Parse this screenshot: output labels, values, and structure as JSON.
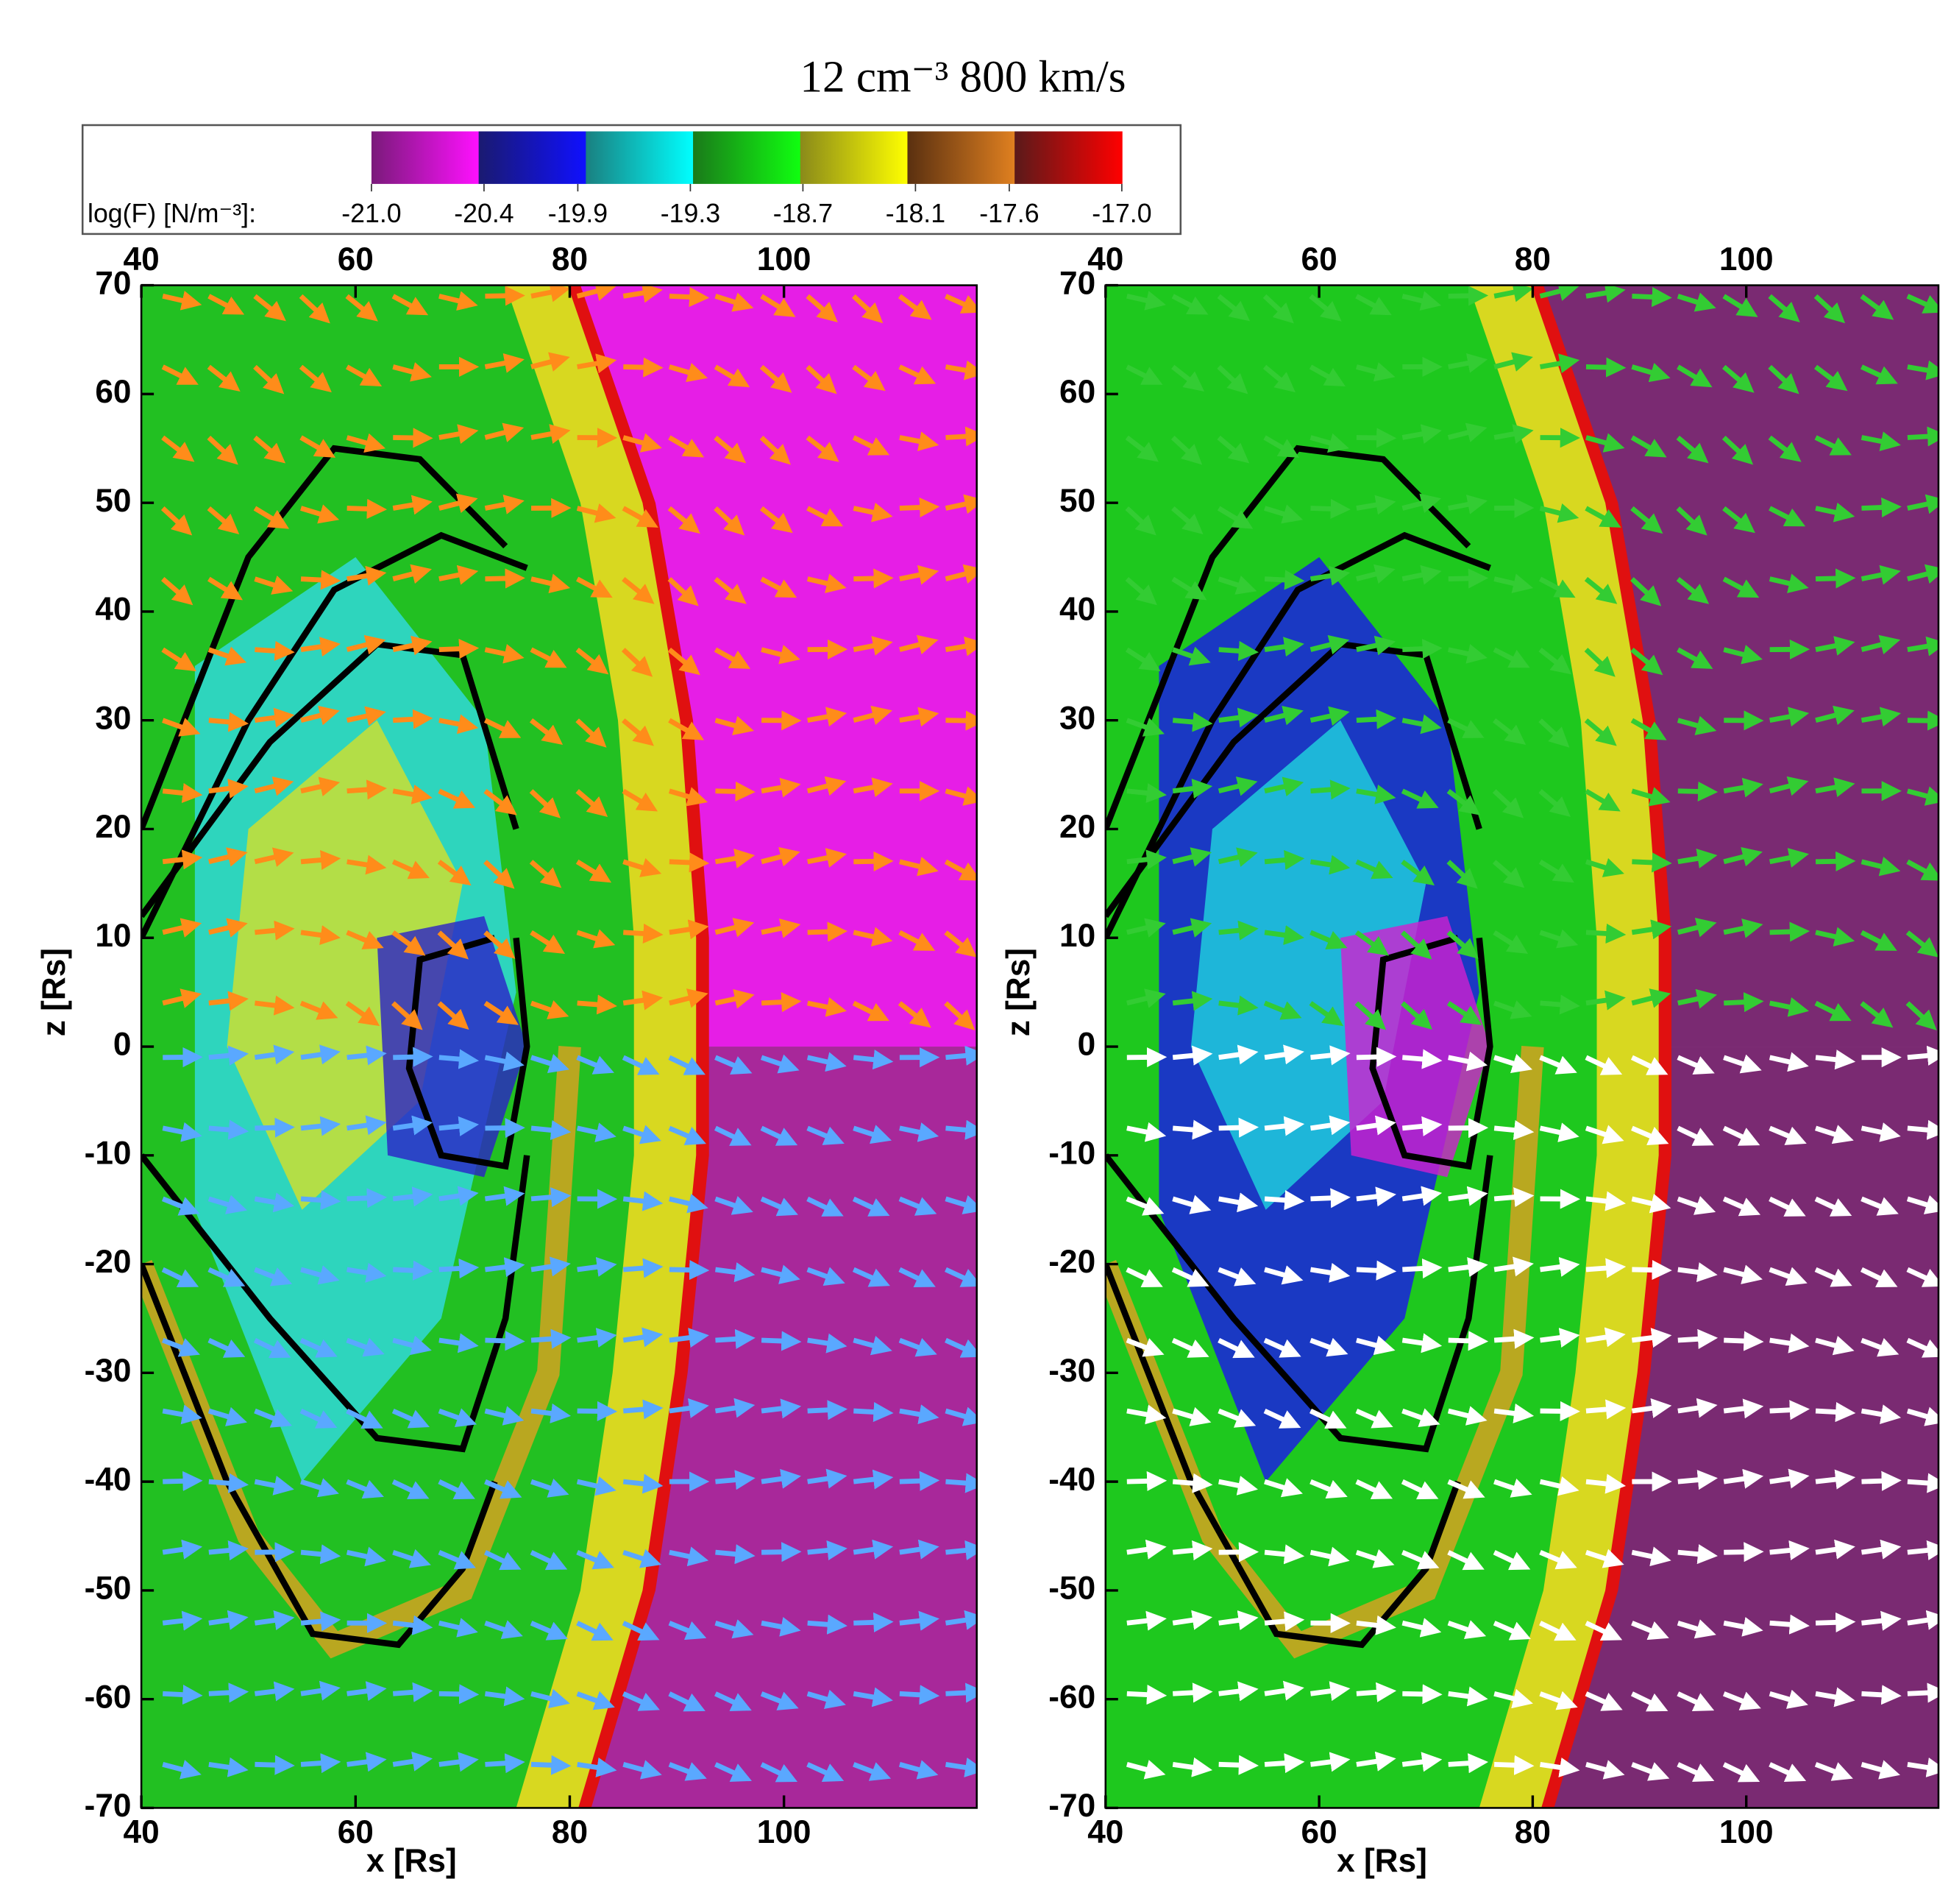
{
  "title": "12 cm⁻³ 800 km/s",
  "colorbar": {
    "label": "log(F) [N/m⁻³]:",
    "lim": [
      -21.0,
      -17.0
    ],
    "ticks": [
      {
        "value": -21.0,
        "label": "-21.0"
      },
      {
        "value": -20.4,
        "label": "-20.4"
      },
      {
        "value": -19.9,
        "label": "-19.9"
      },
      {
        "value": -19.3,
        "label": "-19.3"
      },
      {
        "value": -18.7,
        "label": "-18.7"
      },
      {
        "value": -18.1,
        "label": "-18.1"
      },
      {
        "value": -17.6,
        "label": "-17.6"
      },
      {
        "value": -17.0,
        "label": "-17.0"
      }
    ],
    "colors": [
      [
        "#7a1a7a",
        "#ff10ff"
      ],
      [
        "#1a1a70",
        "#1010ff"
      ],
      [
        "#1a8080",
        "#00ffff"
      ],
      [
        "#1a7a1a",
        "#10ff10"
      ],
      [
        "#8a8a1a",
        "#ffff00"
      ],
      [
        "#5a3010",
        "#e08020"
      ],
      [
        "#5a1a1a",
        "#ff0000"
      ]
    ]
  },
  "chart_data": [
    {
      "type": "field",
      "xlabel": "x [Rs]",
      "ylabel": "z [Rs]",
      "xlim": [
        40,
        118
      ],
      "ylim": [
        -70,
        70
      ],
      "xticks": [
        40,
        60,
        80,
        100
      ],
      "yticks": [
        -70,
        -60,
        -50,
        -40,
        -30,
        -20,
        -10,
        0,
        10,
        20,
        30,
        40,
        50,
        60,
        70
      ],
      "arrow_colors": [
        "#ff8c1a",
        "#5aa8ff"
      ]
    },
    {
      "type": "field",
      "xlabel": "x [Rs]",
      "ylabel": "z [Rs]",
      "xlim": [
        40,
        118
      ],
      "ylim": [
        -70,
        70
      ],
      "xticks": [
        40,
        60,
        80,
        100
      ],
      "yticks": [
        -70,
        -60,
        -50,
        -40,
        -30,
        -20,
        -10,
        0,
        10,
        20,
        30,
        40,
        50,
        60,
        70
      ],
      "arrow_colors": [
        "#33cc33",
        "#ffffff"
      ]
    }
  ]
}
